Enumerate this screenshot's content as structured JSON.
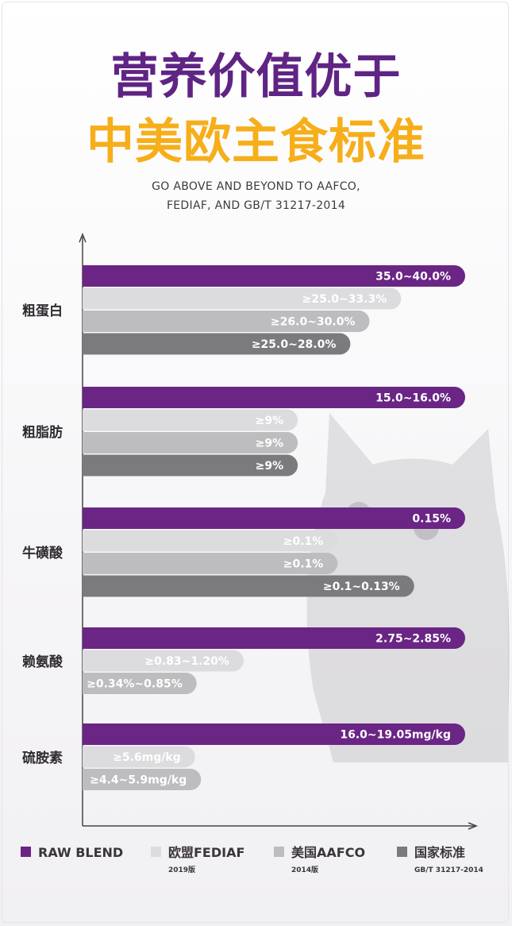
{
  "title_line1": "营养价值优于",
  "title_line2": "中美欧主食标准",
  "subtitle_line1": "GO ABOVE AND BEYOND TO AAFCO,",
  "subtitle_line2": "FEDIAF, AND GB/T 31217-2014",
  "colors": {
    "raw_blend": "#6a2585",
    "fediaf": "#dcdcde",
    "aafco": "#bdbdbf",
    "national": "#7b7b7d",
    "title_purple": "#5f2484",
    "title_orange": "#f6ae1a"
  },
  "chart_data": {
    "type": "bar",
    "orientation": "horizontal",
    "grid": false,
    "legend_position": "bottom",
    "series": [
      {
        "name": "RAW BLEND",
        "sub": "",
        "color": "#6a2585"
      },
      {
        "name": "欧盟FEDIAF",
        "sub": "2019版",
        "color": "#dcdcde"
      },
      {
        "name": "美国AAFCO",
        "sub": "2014版",
        "color": "#bdbdbf"
      },
      {
        "name": "国家标准",
        "sub": "GB/T 31217-2014",
        "color": "#7b7b7d"
      }
    ],
    "categories": [
      {
        "name": "粗蛋白",
        "bars": [
          {
            "series": 0,
            "label": "35.0~40.0%",
            "value": 40.0
          },
          {
            "series": 1,
            "label": "≥25.0~33.3%",
            "value": 33.3
          },
          {
            "series": 2,
            "label": "≥26.0~30.0%",
            "value": 30.0
          },
          {
            "series": 3,
            "label": "≥25.0~28.0%",
            "value": 28.0
          }
        ]
      },
      {
        "name": "粗脂肪",
        "bars": [
          {
            "series": 0,
            "label": "15.0~16.0%",
            "value": 16.0
          },
          {
            "series": 1,
            "label": "≥9%",
            "value": 9
          },
          {
            "series": 2,
            "label": "≥9%",
            "value": 9
          },
          {
            "series": 3,
            "label": "≥9%",
            "value": 9
          }
        ]
      },
      {
        "name": "牛磺酸",
        "bars": [
          {
            "series": 0,
            "label": "0.15%",
            "value": 0.15
          },
          {
            "series": 1,
            "label": "≥0.1%",
            "value": 0.1
          },
          {
            "series": 2,
            "label": "≥0.1%",
            "value": 0.1
          },
          {
            "series": 3,
            "label": "≥0.1~0.13%",
            "value": 0.13
          }
        ]
      },
      {
        "name": "赖氨酸",
        "bars": [
          {
            "series": 0,
            "label": "2.75~2.85%",
            "value": 2.85
          },
          {
            "series": 1,
            "label": "≥0.83~1.20%",
            "value": 1.2
          },
          {
            "series": 2,
            "label": "≥0.34%~0.85%",
            "value": 0.85
          }
        ]
      },
      {
        "name": "硫胺素",
        "bars": [
          {
            "series": 0,
            "label": "16.0~19.05mg/kg",
            "value": 19.05
          },
          {
            "series": 1,
            "label": "≥5.6mg/kg",
            "value": 5.6
          },
          {
            "series": 2,
            "label": "≥4.4~5.9mg/kg",
            "value": 5.9
          }
        ]
      }
    ]
  }
}
